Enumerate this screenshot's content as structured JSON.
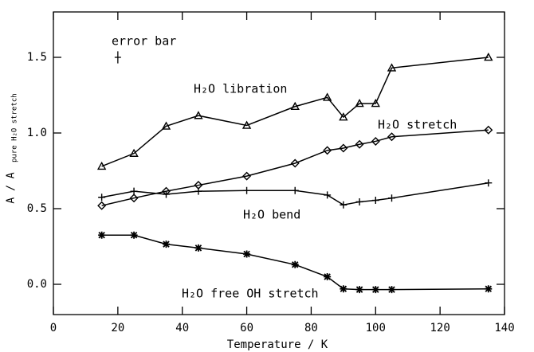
{
  "chart_data": {
    "type": "line",
    "xlabel": "Temperature / K",
    "ylabel": "A / A",
    "ylabel_sub": "pure H₂O stretch",
    "xlim": [
      0,
      140
    ],
    "xticks": [
      0,
      20,
      40,
      60,
      80,
      100,
      120,
      140
    ],
    "ylim": [
      -0.2,
      1.8
    ],
    "yticks": [
      {
        "value": 0,
        "label": "0.0"
      },
      {
        "value": 0.5,
        "label": "0.5"
      },
      {
        "value": 1,
        "label": "1.0"
      },
      {
        "value": 1.5,
        "label": "1.5"
      }
    ],
    "color": "#000000",
    "error_bar": {
      "label": "error bar",
      "x": 20,
      "y": 1.5,
      "yerr": 0.04
    },
    "series": [
      {
        "name": "H₂O libration",
        "marker": "triangle",
        "x": [
          15,
          25,
          35,
          45,
          60,
          75,
          85,
          90,
          95,
          100,
          105,
          135
        ],
        "values": [
          0.78,
          0.865,
          1.045,
          1.115,
          1.05,
          1.175,
          1.235,
          1.105,
          1.195,
          1.195,
          1.43,
          1.5
        ]
      },
      {
        "name": "H₂O stretch",
        "marker": "diamond",
        "x": [
          15,
          25,
          35,
          45,
          60,
          75,
          85,
          90,
          95,
          100,
          105,
          135
        ],
        "values": [
          0.52,
          0.57,
          0.615,
          0.655,
          0.715,
          0.8,
          0.885,
          0.9,
          0.925,
          0.945,
          0.975,
          1.02
        ]
      },
      {
        "name": "H₂O bend",
        "marker": "plus",
        "x": [
          15,
          25,
          35,
          45,
          60,
          75,
          85,
          90,
          95,
          100,
          105,
          135
        ],
        "values": [
          0.575,
          0.615,
          0.595,
          0.615,
          0.62,
          0.62,
          0.59,
          0.525,
          0.545,
          0.555,
          0.57,
          0.67
        ]
      },
      {
        "name": "H₂O free OH stretch",
        "marker": "asterisk",
        "x": [
          15,
          25,
          35,
          45,
          60,
          75,
          85,
          90,
          95,
          100,
          105,
          135
        ],
        "values": [
          0.325,
          0.325,
          0.265,
          0.24,
          0.2,
          0.13,
          0.05,
          -0.03,
          -0.035,
          -0.035,
          -0.035,
          -0.03
        ]
      }
    ]
  }
}
